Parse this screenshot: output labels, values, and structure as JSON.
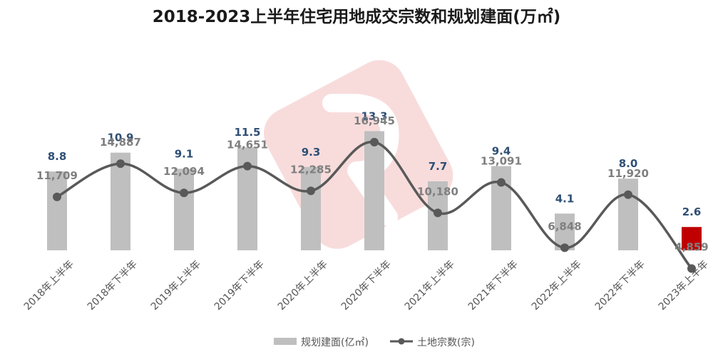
{
  "chart_data": {
    "type": "bar",
    "title": "2018-2023上半年住宅用地成交宗数和规划建面(万㎡)",
    "categories": [
      "2018年上半年",
      "2018年下半年",
      "2019年上半年",
      "2019年下半年",
      "2020年上半年",
      "2020年下半年",
      "2021年上半年",
      "2021年下半年",
      "2022年上半年",
      "2022年下半年",
      "2023年上半年"
    ],
    "series": [
      {
        "name": "规划建面(亿㎡)",
        "type": "bar",
        "values": [
          8.8,
          10.9,
          9.1,
          11.5,
          9.3,
          13.3,
          7.7,
          9.4,
          4.1,
          8.0,
          2.6
        ],
        "labels": [
          "8.8",
          "10.9",
          "9.1",
          "11.5",
          "9.3",
          "13.3",
          "7.7",
          "9.4",
          "4.1",
          "8.0",
          "2.6"
        ],
        "color": "#bfbfbf",
        "highlight_color": "#c00000",
        "highlight_index": 10
      },
      {
        "name": "土地宗数(宗)",
        "type": "line",
        "values": [
          11709,
          14887,
          12094,
          14651,
          12285,
          16945,
          10180,
          13091,
          6848,
          11920,
          4859
        ],
        "labels": [
          "11,709",
          "14,887",
          "12,094",
          "14,651",
          "12,285",
          "16,945",
          "10,180",
          "13,091",
          "6,848",
          "11,920",
          "4,859"
        ],
        "color": "#595959"
      }
    ],
    "legend": "bottom",
    "grid": false
  }
}
